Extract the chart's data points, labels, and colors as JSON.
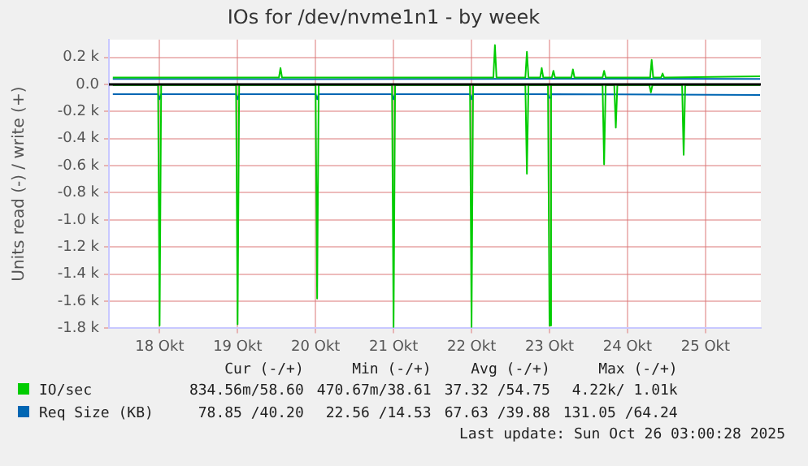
{
  "chart_data": {
    "type": "line",
    "title": "IOs for /dev/nvme1n1 - by week",
    "ylabel": "Units read (-) / write (+)",
    "xlim": [
      17.35,
      25.71
    ],
    "xticks": [
      {
        "value": 18,
        "label": "18 Okt"
      },
      {
        "value": 19,
        "label": "19 Okt"
      },
      {
        "value": 20,
        "label": "20 Okt"
      },
      {
        "value": 21,
        "label": "21 Okt"
      },
      {
        "value": 22,
        "label": "22 Okt"
      },
      {
        "value": 23,
        "label": "23 Okt"
      },
      {
        "value": 24,
        "label": "24 Okt"
      },
      {
        "value": 25,
        "label": "25 Okt"
      }
    ],
    "ylim": [
      -1800,
      330
    ],
    "yticks": [
      {
        "value": -1800,
        "label": "-1.8 k"
      },
      {
        "value": -1600,
        "label": "-1.6 k"
      },
      {
        "value": -1400,
        "label": "-1.4 k"
      },
      {
        "value": -1200,
        "label": "-1.2 k"
      },
      {
        "value": -1000,
        "label": "-1.0 k"
      },
      {
        "value": -800,
        "label": "-0.8 k"
      },
      {
        "value": -600,
        "label": "-0.6 k"
      },
      {
        "value": -400,
        "label": "-0.4 k"
      },
      {
        "value": -200,
        "label": "-0.2 k"
      },
      {
        "value": 0,
        "label": "0.0"
      },
      {
        "value": 200,
        "label": "0.2 k"
      }
    ],
    "grid": true,
    "legend": "bottom",
    "marker": "none",
    "line_style": "solid",
    "ref_lines": [
      {
        "axis": "y",
        "value": 0,
        "label": null,
        "color": "#000000"
      }
    ],
    "series": [
      {
        "name": "IO/sec",
        "color": "#00cc00",
        "x": [
          17.4,
          19.53,
          19.55,
          19.57,
          22.28,
          22.3,
          22.32,
          22.69,
          22.71,
          22.73,
          22.88,
          22.9,
          22.92,
          23.03,
          23.05,
          23.07,
          23.28,
          23.3,
          23.32,
          23.68,
          23.7,
          23.72,
          24.29,
          24.31,
          24.33,
          24.43,
          24.45,
          24.47,
          25.7
        ],
        "values": [
          50,
          50,
          120,
          50,
          50,
          290,
          50,
          50,
          240,
          50,
          50,
          120,
          50,
          50,
          100,
          50,
          50,
          110,
          50,
          50,
          100,
          50,
          50,
          180,
          50,
          50,
          80,
          50,
          60
        ]
      },
      {
        "color": "#00cc00",
        "x": [
          17.4,
          17.98,
          18.0,
          18.02,
          18.98,
          19.0,
          19.02,
          20.0,
          20.02,
          20.04,
          20.98,
          21.0,
          21.02,
          21.98,
          22.0,
          22.02,
          22.69,
          22.71,
          22.73,
          22.98,
          23.0,
          23.02,
          23.68,
          23.7,
          23.72,
          23.83,
          23.85,
          23.87,
          24.28,
          24.3,
          24.32,
          24.7,
          24.72,
          24.74,
          25.7
        ],
        "values": [
          -5,
          -5,
          -1780,
          -5,
          -5,
          -1770,
          -5,
          -5,
          -1580,
          -5,
          -5,
          -1790,
          -5,
          -5,
          -1790,
          -5,
          -5,
          -660,
          -5,
          -5,
          -1780,
          -5,
          -5,
          -590,
          -5,
          -5,
          -320,
          -5,
          -5,
          -60,
          -5,
          -5,
          -520,
          -5,
          -5
        ]
      },
      {
        "name": "Req Size (KB)",
        "color": "#0066b3",
        "x": [
          17.4,
          20.0,
          22.0,
          23.0,
          25.7
        ],
        "values": [
          40,
          38,
          40,
          42,
          40
        ]
      },
      {
        "color": "#0066b3",
        "x": [
          17.4,
          17.98,
          18.0,
          18.02,
          18.98,
          19.0,
          19.02,
          20.0,
          20.02,
          20.04,
          20.98,
          21.0,
          21.02,
          21.98,
          22.0,
          22.02,
          22.98,
          23.0,
          23.02,
          25.7
        ],
        "values": [
          -72,
          -72,
          -110,
          -72,
          -72,
          -110,
          -72,
          -72,
          -110,
          -72,
          -72,
          -110,
          -72,
          -72,
          -110,
          -72,
          -72,
          -100,
          -72,
          -78
        ]
      }
    ],
    "annotations": [
      "Cur (-/+)",
      "Min (-/+)",
      "Avg (-/+)",
      "Max (-/+)",
      "834.56m/58.60",
      "470.67m/38.61",
      "37.32 /54.75",
      "4.22k/ 1.01k",
      "78.85 /40.20",
      "22.56 /14.53",
      "67.63 /39.88",
      "131.05 /64.24",
      "Last update: Sun Oct 26 03:00:28 2025"
    ]
  }
}
